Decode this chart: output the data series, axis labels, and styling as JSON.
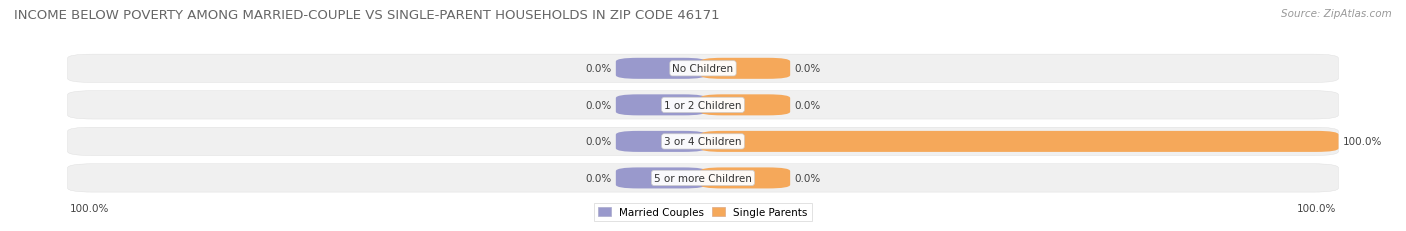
{
  "title": "INCOME BELOW POVERTY AMONG MARRIED-COUPLE VS SINGLE-PARENT HOUSEHOLDS IN ZIP CODE 46171",
  "source": "Source: ZipAtlas.com",
  "categories": [
    "No Children",
    "1 or 2 Children",
    "3 or 4 Children",
    "5 or more Children"
  ],
  "married_values": [
    0.0,
    0.0,
    0.0,
    0.0
  ],
  "single_values": [
    0.0,
    0.0,
    100.0,
    0.0
  ],
  "married_color": "#9999cc",
  "single_color": "#f5a85a",
  "married_label": "Married Couples",
  "single_label": "Single Parents",
  "bar_bg_color": "#e8e8e8",
  "row_bg_odd": "#f5f5f5",
  "row_bg_even": "#ececec",
  "title_fontsize": 9.5,
  "source_fontsize": 7.5,
  "label_fontsize": 7.5,
  "category_fontsize": 7.5,
  "bottom_left_label": "100.0%",
  "bottom_right_label": "100.0%",
  "figsize": [
    14.06,
    2.32
  ],
  "dpi": 100
}
